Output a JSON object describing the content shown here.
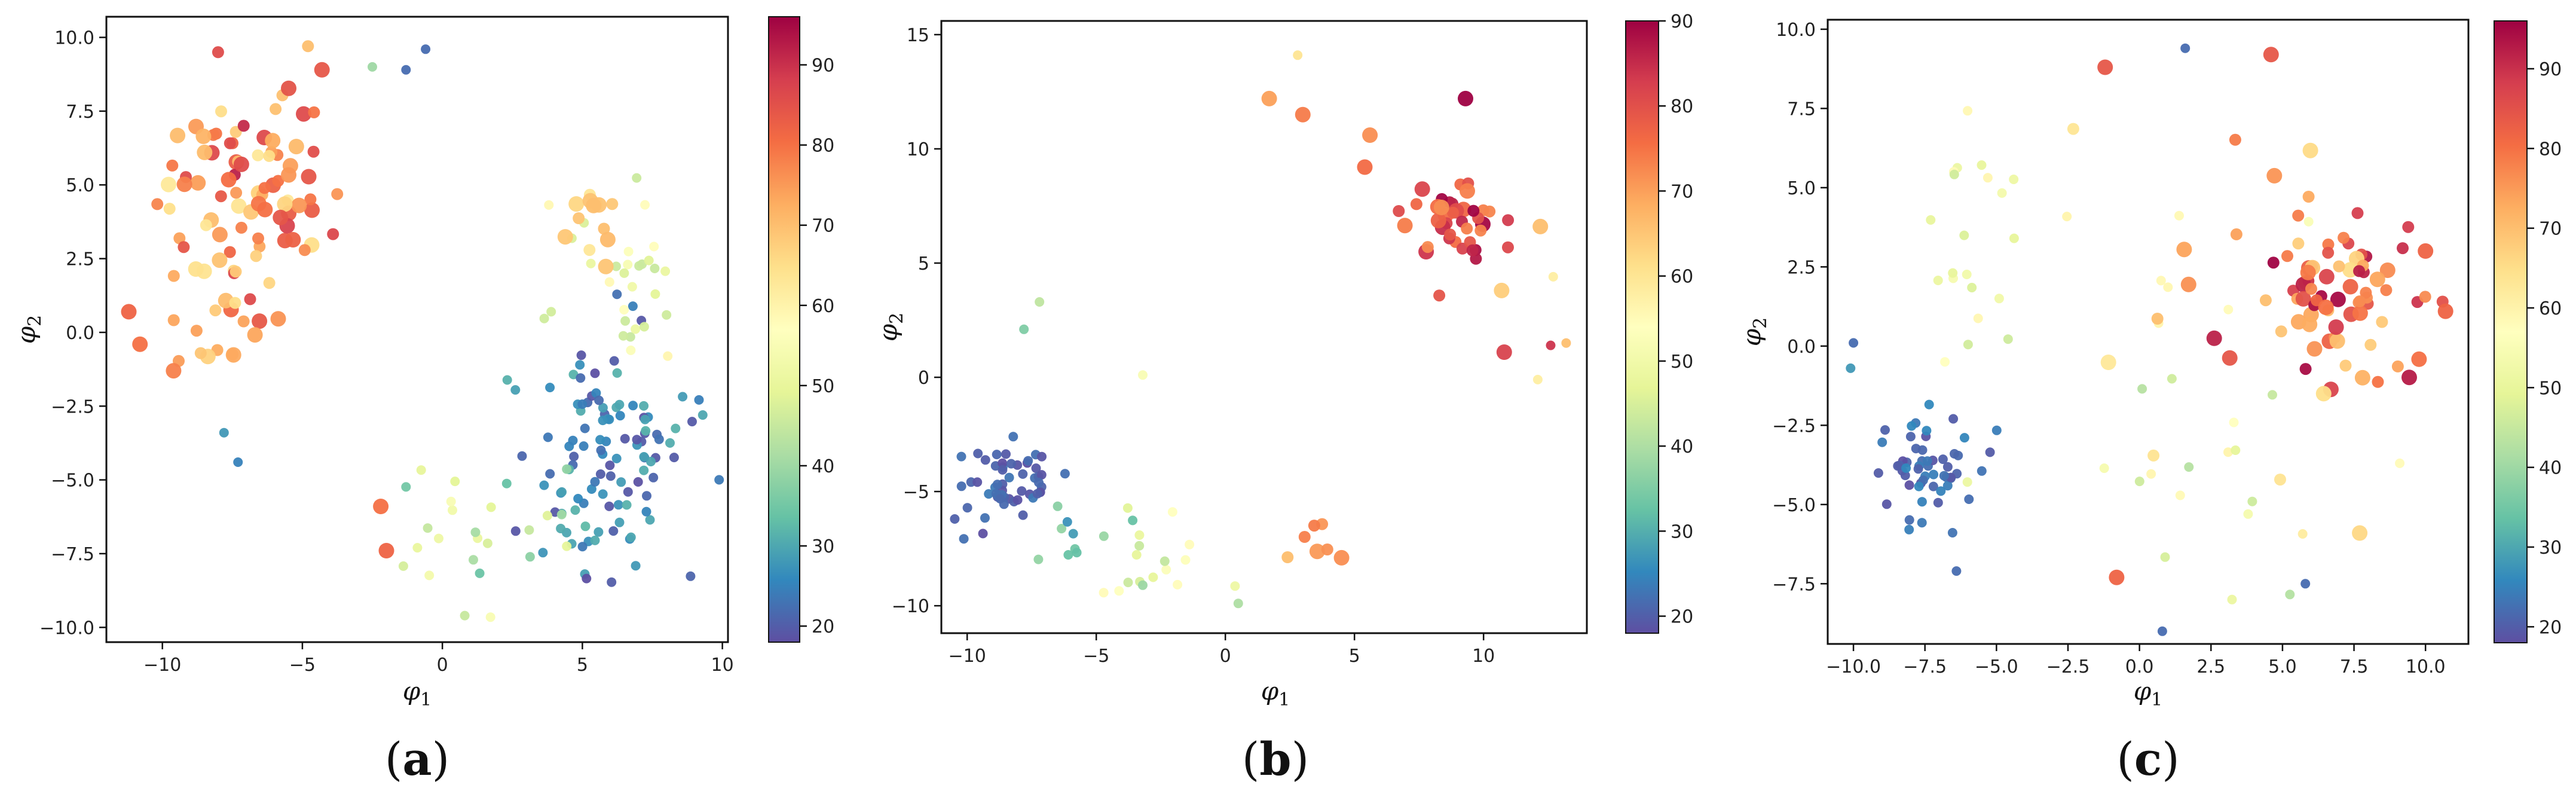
{
  "figure": {
    "colormap": "Spectral_r"
  },
  "chart_data": [
    {
      "type": "scatter",
      "panel_label": {
        "open": "(",
        "letter": "a",
        "close": ")"
      },
      "xlabel": {
        "symbol": "φ",
        "sub": "1"
      },
      "ylabel": {
        "symbol": "φ",
        "sub": "2"
      },
      "xlim": [
        -12,
        10.2
      ],
      "ylim": [
        -10.5,
        10.7
      ],
      "xticks": [
        -10,
        -5,
        0,
        5,
        10
      ],
      "yticks": [
        -10.0,
        -7.5,
        -5.0,
        -2.5,
        0.0,
        2.5,
        5.0,
        7.5,
        10.0
      ],
      "ytick_labels": [
        "−10.0",
        "−7.5",
        "−5.0",
        "−2.5",
        "0.0",
        "2.5",
        "5.0",
        "7.5",
        "10.0"
      ],
      "xtick_labels": [
        "−10",
        "−5",
        "0",
        "5",
        "10"
      ],
      "colorbar": {
        "min": 18,
        "max": 96,
        "ticks": [
          20,
          30,
          40,
          50,
          60,
          70,
          80,
          90
        ]
      },
      "clusters": [
        {
          "cx": -7.0,
          "cy": 4.5,
          "sx": 1.6,
          "sy": 2.0,
          "n": 90,
          "vmin": 62,
          "vmax": 92
        },
        {
          "cx": -8.5,
          "cy": 0.5,
          "sx": 1.0,
          "sy": 1.2,
          "n": 12,
          "vmin": 55,
          "vmax": 75
        },
        {
          "cx": 6.0,
          "cy": -4.5,
          "sx": 1.4,
          "sy": 1.8,
          "n": 110,
          "vmin": 18,
          "vmax": 32
        },
        {
          "cx": 6.5,
          "cy": 1.5,
          "sx": 1.6,
          "sy": 1.6,
          "n": 30,
          "vmin": 45,
          "vmax": 60
        },
        {
          "cx": 5.5,
          "cy": 3.5,
          "sx": 0.6,
          "sy": 0.8,
          "n": 12,
          "vmin": 62,
          "vmax": 72
        },
        {
          "cx": 1.5,
          "cy": -6.5,
          "sx": 2.0,
          "sy": 1.5,
          "n": 25,
          "vmin": 32,
          "vmax": 55
        }
      ],
      "points": [
        {
          "x": -11.2,
          "y": 0.7,
          "v": 82,
          "s": 3
        },
        {
          "x": -10.8,
          "y": -0.4,
          "v": 80,
          "s": 3
        },
        {
          "x": -9.6,
          "y": -1.3,
          "v": 78,
          "s": 3
        },
        {
          "x": -2.2,
          "y": -5.9,
          "v": 80,
          "s": 3
        },
        {
          "x": -2.0,
          "y": -7.4,
          "v": 82,
          "s": 3
        },
        {
          "x": -4.3,
          "y": 8.9,
          "v": 84,
          "s": 3
        },
        {
          "x": -4.8,
          "y": 9.7,
          "v": 70,
          "s": 2
        },
        {
          "x": -1.3,
          "y": 8.9,
          "v": 22,
          "s": 1
        },
        {
          "x": -0.6,
          "y": 9.6,
          "v": 22,
          "s": 1
        },
        {
          "x": -2.5,
          "y": 9.0,
          "v": 40,
          "s": 1
        },
        {
          "x": 0.8,
          "y": -9.6,
          "v": 45,
          "s": 1
        },
        {
          "x": -7.3,
          "y": -4.4,
          "v": 25,
          "s": 1
        },
        {
          "x": -7.8,
          "y": -3.4,
          "v": 28,
          "s": 1
        },
        {
          "x": 9.3,
          "y": -2.8,
          "v": 30,
          "s": 1
        },
        {
          "x": 5.4,
          "y": 4.3,
          "v": 70,
          "s": 3
        }
      ]
    },
    {
      "type": "scatter",
      "panel_label": {
        "open": "(",
        "letter": "b",
        "close": ")"
      },
      "xlabel": {
        "symbol": "φ",
        "sub": "1"
      },
      "ylabel": {
        "symbol": "φ",
        "sub": "2"
      },
      "xlim": [
        -11,
        14
      ],
      "ylim": [
        -11.2,
        15.6
      ],
      "xticks": [
        -10,
        -5,
        0,
        5,
        10
      ],
      "yticks": [
        -10,
        -5,
        0,
        5,
        10,
        15
      ],
      "xtick_labels": [
        "−10",
        "−5",
        "0",
        "5",
        "10"
      ],
      "ytick_labels": [
        "−10",
        "−5",
        "0",
        "5",
        "10",
        "15"
      ],
      "colorbar": {
        "min": 18,
        "max": 90,
        "ticks": [
          20,
          30,
          40,
          50,
          60,
          70,
          80,
          90
        ]
      },
      "clusters": [
        {
          "cx": -8.5,
          "cy": -4.8,
          "sx": 0.9,
          "sy": 0.9,
          "n": 55,
          "vmin": 18,
          "vmax": 24
        },
        {
          "cx": -6.0,
          "cy": -6.8,
          "sx": 1.0,
          "sy": 0.8,
          "n": 10,
          "vmin": 25,
          "vmax": 38
        },
        {
          "cx": -2.5,
          "cy": -7.3,
          "sx": 1.5,
          "sy": 1.2,
          "n": 16,
          "vmin": 42,
          "vmax": 55
        },
        {
          "cx": 8.8,
          "cy": 7.2,
          "sx": 0.9,
          "sy": 0.9,
          "n": 40,
          "vmin": 72,
          "vmax": 90
        },
        {
          "cx": 3.0,
          "cy": -7.2,
          "sx": 0.7,
          "sy": 0.6,
          "n": 6,
          "vmin": 65,
          "vmax": 75
        }
      ],
      "points": [
        {
          "x": 2.8,
          "y": 14.1,
          "v": 60,
          "s": 1
        },
        {
          "x": 1.7,
          "y": 12.2,
          "v": 70,
          "s": 3
        },
        {
          "x": 3.0,
          "y": 11.5,
          "v": 74,
          "s": 3
        },
        {
          "x": 9.3,
          "y": 12.2,
          "v": 90,
          "s": 3
        },
        {
          "x": 5.6,
          "y": 10.6,
          "v": 72,
          "s": 3
        },
        {
          "x": 5.4,
          "y": 9.2,
          "v": 76,
          "s": 3
        },
        {
          "x": 10.7,
          "y": 3.8,
          "v": 64,
          "s": 3
        },
        {
          "x": 10.8,
          "y": 1.1,
          "v": 82,
          "s": 3
        },
        {
          "x": 12.2,
          "y": 6.6,
          "v": 66,
          "s": 3
        },
        {
          "x": 12.7,
          "y": 4.4,
          "v": 58,
          "s": 1
        },
        {
          "x": 13.2,
          "y": 1.5,
          "v": 66,
          "s": 1
        },
        {
          "x": 12.6,
          "y": 1.4,
          "v": 84,
          "s": 1
        },
        {
          "x": 12.1,
          "y": -0.1,
          "v": 58,
          "s": 1
        },
        {
          "x": -7.2,
          "y": 3.3,
          "v": 42,
          "s": 1
        },
        {
          "x": -7.8,
          "y": 2.1,
          "v": 35,
          "s": 1
        },
        {
          "x": 4.5,
          "y": -7.9,
          "v": 72,
          "s": 3
        },
        {
          "x": 0.5,
          "y": -9.9,
          "v": 40,
          "s": 1
        },
        {
          "x": -3.2,
          "y": 0.1,
          "v": 52,
          "s": 1
        },
        {
          "x": -3.2,
          "y": -9.1,
          "v": 38,
          "s": 1
        }
      ]
    },
    {
      "type": "scatter",
      "panel_label": {
        "open": "(",
        "letter": "c",
        "close": ")"
      },
      "xlabel": {
        "symbol": "φ",
        "sub": "1"
      },
      "ylabel": {
        "symbol": "φ",
        "sub": "2"
      },
      "xlim": [
        -10.9,
        11.5
      ],
      "ylim": [
        -9.4,
        10.3
      ],
      "xticks": [
        -10.0,
        -7.5,
        -5.0,
        -2.5,
        0.0,
        2.5,
        5.0,
        7.5,
        10.0
      ],
      "xtick_labels": [
        "−10.0",
        "−7.5",
        "−5.0",
        "−2.5",
        "0.0",
        "2.5",
        "5.0",
        "7.5",
        "10.0"
      ],
      "yticks": [
        -7.5,
        -5.0,
        -2.5,
        0.0,
        2.5,
        5.0,
        7.5,
        10.0
      ],
      "ytick_labels": [
        "−7.5",
        "−5.0",
        "−2.5",
        "0.0",
        "2.5",
        "5.0",
        "7.5",
        "10.0"
      ],
      "colorbar": {
        "min": 18,
        "max": 96,
        "ticks": [
          20,
          30,
          40,
          50,
          60,
          70,
          80,
          90
        ]
      },
      "clusters": [
        {
          "cx": -7.8,
          "cy": -3.8,
          "sx": 1.1,
          "sy": 1.0,
          "n": 55,
          "vmin": 18,
          "vmax": 26
        },
        {
          "cx": 7.0,
          "cy": 1.8,
          "sx": 1.3,
          "sy": 1.4,
          "n": 75,
          "vmin": 65,
          "vmax": 96
        },
        {
          "cx": -5.5,
          "cy": 2.5,
          "sx": 1.6,
          "sy": 2.4,
          "n": 22,
          "vmin": 45,
          "vmax": 60
        },
        {
          "cx": 1.5,
          "cy": -4.0,
          "sx": 3.2,
          "sy": 2.0,
          "n": 22,
          "vmin": 42,
          "vmax": 65
        },
        {
          "cx": 2.0,
          "cy": 4.5,
          "sx": 3.0,
          "sy": 2.0,
          "n": 14,
          "vmin": 55,
          "vmax": 80
        }
      ],
      "points": [
        {
          "x": -1.2,
          "y": 8.8,
          "v": 84,
          "s": 3
        },
        {
          "x": 4.6,
          "y": 9.2,
          "v": 84,
          "s": 3
        },
        {
          "x": 1.6,
          "y": 9.4,
          "v": 22,
          "s": 1
        },
        {
          "x": 10.0,
          "y": 3.0,
          "v": 82,
          "s": 3
        },
        {
          "x": 10.7,
          "y": 1.1,
          "v": 82,
          "s": 3
        },
        {
          "x": 9.1,
          "y": -3.7,
          "v": 58,
          "s": 1
        },
        {
          "x": 7.7,
          "y": -5.9,
          "v": 66,
          "s": 3
        },
        {
          "x": 5.8,
          "y": -7.5,
          "v": 22,
          "s": 1
        },
        {
          "x": 0.8,
          "y": -9.0,
          "v": 22,
          "s": 1
        },
        {
          "x": -0.8,
          "y": -7.3,
          "v": 82,
          "s": 3
        },
        {
          "x": -6.4,
          "y": -7.1,
          "v": 22,
          "s": 1
        },
        {
          "x": -10.0,
          "y": 0.1,
          "v": 22,
          "s": 1
        },
        {
          "x": -10.1,
          "y": -0.7,
          "v": 28,
          "s": 1
        },
        {
          "x": 7.8,
          "y": -1.0,
          "v": 72,
          "s": 3
        }
      ]
    }
  ]
}
